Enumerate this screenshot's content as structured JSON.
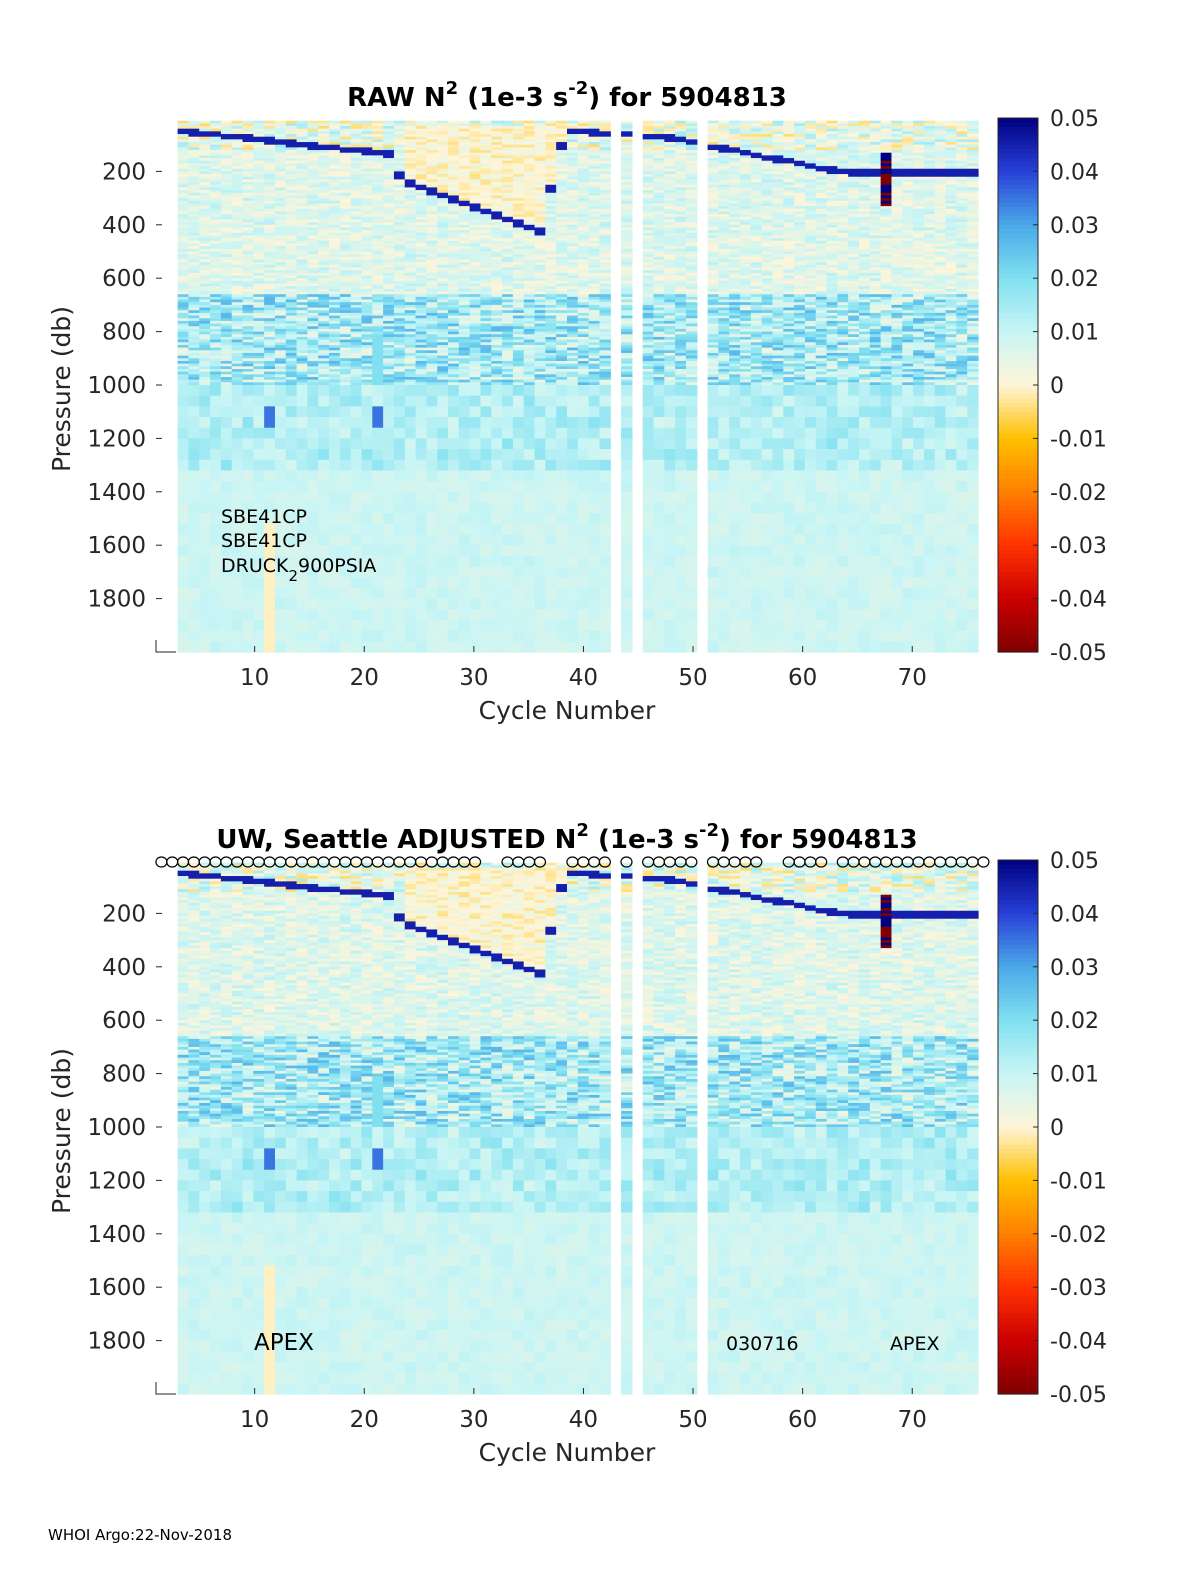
{
  "chart_data": [
    {
      "type": "heatmap",
      "title": "RAW N",
      "title_sup": "2",
      "title_mid": " (1e-3 s",
      "title_sup2": "-2",
      "title_end": ") for 5904813",
      "xlabel": "Cycle Number",
      "ylabel": "Pressure (db)",
      "xlim": [
        1,
        76
      ],
      "ylim": [
        0,
        2000
      ],
      "y_reversed": true,
      "x_ticks": [
        10,
        20,
        30,
        40,
        50,
        60,
        70
      ],
      "y_ticks": [
        200,
        400,
        600,
        800,
        1000,
        1200,
        1400,
        1600,
        1800
      ],
      "colorbar": {
        "min": -0.05,
        "max": 0.05,
        "ticks": [
          "0.05",
          "0.04",
          "0.03",
          "0.02",
          "0.01",
          "0",
          "-0.01",
          "-0.02",
          "-0.03",
          "-0.04",
          "-0.05"
        ]
      },
      "colormap": [
        "#7f0000",
        "#cc0000",
        "#ff3300",
        "#ff8000",
        "#ffc000",
        "#fff5d8",
        "#c8f5f5",
        "#80e0f0",
        "#4aa8e8",
        "#2840d8",
        "#000080"
      ],
      "missing_cycles": [
        1,
        2,
        43,
        45,
        51
      ],
      "annotations": [
        "SBE41CP",
        "SBE41CP",
        "DRUCK",
        "2",
        "900PSIA"
      ],
      "has_qc_markers": false
    },
    {
      "type": "heatmap",
      "title": "UW, Seattle  ADJUSTED N",
      "title_sup": "2",
      "title_mid": " (1e-3 s",
      "title_sup2": "-2",
      "title_end": ") for 5904813",
      "xlabel": "Cycle Number",
      "ylabel": "Pressure (db)",
      "xlim": [
        1,
        76
      ],
      "ylim": [
        0,
        2000
      ],
      "y_reversed": true,
      "x_ticks": [
        10,
        20,
        30,
        40,
        50,
        60,
        70
      ],
      "y_ticks": [
        200,
        400,
        600,
        800,
        1000,
        1200,
        1400,
        1600,
        1800
      ],
      "colorbar": {
        "min": -0.05,
        "max": 0.05,
        "ticks": [
          "0.05",
          "0.04",
          "0.03",
          "0.02",
          "0.01",
          "0",
          "-0.01",
          "-0.02",
          "-0.03",
          "-0.04",
          "-0.05"
        ]
      },
      "colormap": [
        "#7f0000",
        "#cc0000",
        "#ff3300",
        "#ff8000",
        "#ffc000",
        "#fff5d8",
        "#c8f5f5",
        "#80e0f0",
        "#4aa8e8",
        "#2840d8",
        "#000080"
      ],
      "missing_cycles": [
        1,
        2,
        43,
        45,
        51
      ],
      "annotations": [
        "APEX",
        "030716",
        "APEX"
      ],
      "has_qc_markers": true
    }
  ],
  "footer": "WHOI Argo:22-Nov-2018"
}
